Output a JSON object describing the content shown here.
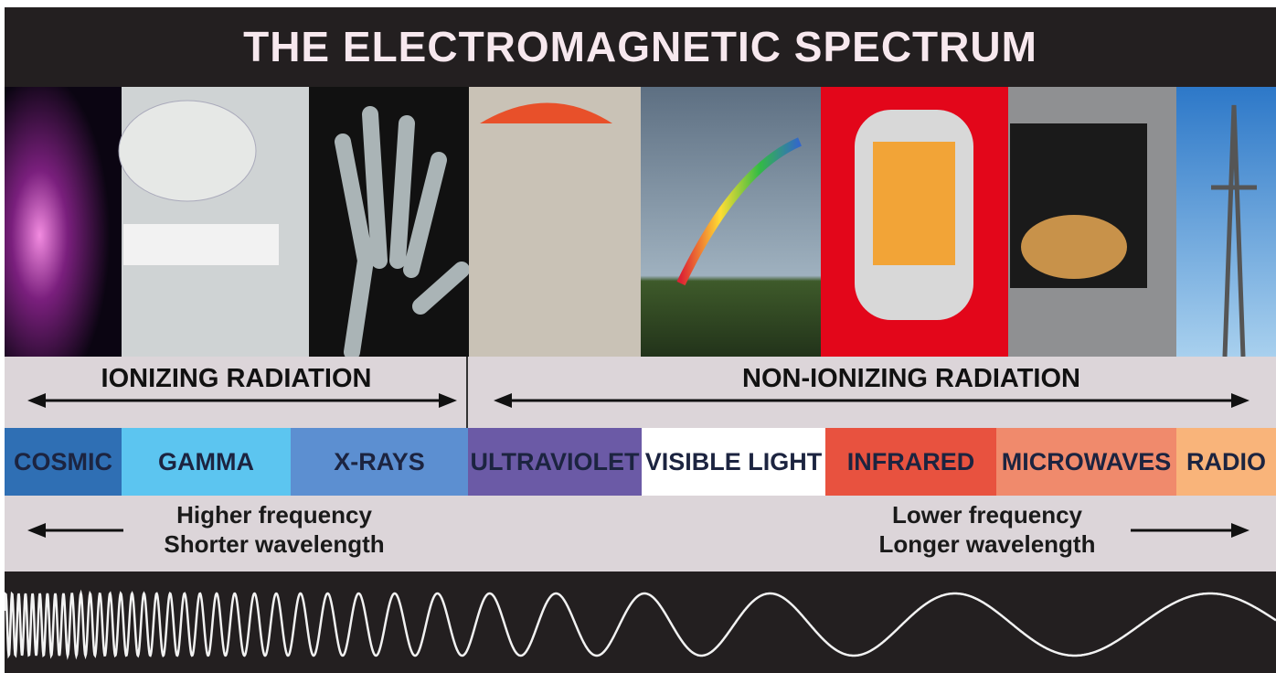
{
  "header": {
    "title": "THE ELECTROMAGNETIC SPECTRUM"
  },
  "radiation_groups": [
    {
      "label": "IONIZING RADIATION"
    },
    {
      "label": "NON-IONIZING RADIATION"
    }
  ],
  "bands": [
    {
      "label": "COSMIC"
    },
    {
      "label": "GAMMA"
    },
    {
      "label": "X-RAYS"
    },
    {
      "label": "ULTRAVIOLET"
    },
    {
      "label": "VISIBLE LIGHT"
    },
    {
      "label": "INFRARED"
    },
    {
      "label": "MICROWAVES"
    },
    {
      "label": "RADIO"
    }
  ],
  "frequency_notes": {
    "left": [
      "Higher frequency",
      "Shorter wavelength"
    ],
    "right": [
      "Lower frequency",
      "Longer wavelength"
    ]
  }
}
